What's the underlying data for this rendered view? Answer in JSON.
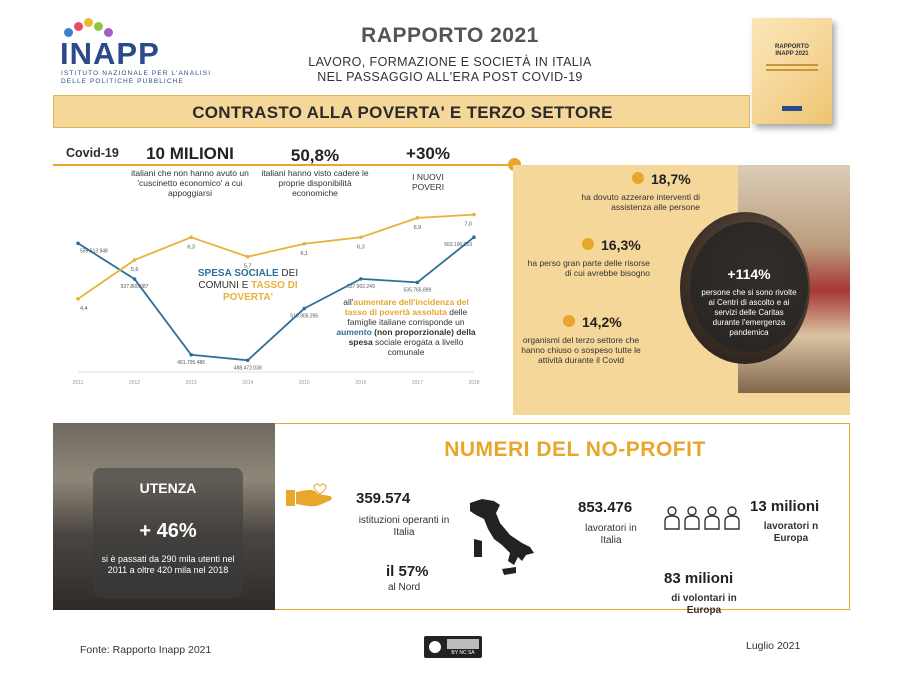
{
  "header": {
    "logo_word": "INAPP",
    "logo_line1": "ISTITUTO NAZIONALE PER L'ANALISI",
    "logo_line2": "DELLE POLITICHE PUBBLICHE",
    "title": "RAPPORTO 2021",
    "subtitle_line1": "LAVORO, FORMAZIONE E SOCIETÀ IN ITALIA",
    "subtitle_line2": "NEL PASSAGGIO ALL'ERA POST COVID-19",
    "book_title_line1": "RAPPORTO",
    "book_title_line2": "INAPP 2021"
  },
  "banner": {
    "title": "CONTRASTO ALLA POVERTA' E TERZO SETTORE"
  },
  "covid": {
    "label": "Covid-19",
    "items": [
      {
        "value": "10 MILIONI",
        "desc": "italiani che non hanno avuto un 'cuscinetto economico' a cui appoggiarsi"
      },
      {
        "value": "50,8%",
        "desc": "italiani hanno visto cadere le proprie disponibilità economiche"
      },
      {
        "value": "+30%",
        "desc": "I NUOVI POVERI"
      }
    ]
  },
  "chart": {
    "legend_part1": "SPESA SOCIALE",
    "legend_part2": " DEI COMUNI E ",
    "legend_part3": "TASSO DI POVERTA'",
    "note_part1": "all'",
    "note_part2": "aumentare dell'incidenza del tasso di povertà assoluta",
    "note_part3": " delle famiglie italiane corrisponde un ",
    "note_part4": "aumento",
    "note_part5": " (non proporzionale) della spesa",
    "note_part6": " sociale erogata a livello comunale"
  },
  "chart_data": {
    "type": "line",
    "x": [
      "2011",
      "2012",
      "2013",
      "2014",
      "2015",
      "2016",
      "2017",
      "2018"
    ],
    "series": [
      {
        "name": "SPESA SOCIALE DEI COMUNI",
        "color": "#2f6f97",
        "values": [
          559513948,
          537800087,
          491795486,
          488472038,
          519905295,
          537902249,
          535765899,
          563190053
        ],
        "labels": [
          "559.513.948",
          "537.800.087",
          "491.795.486",
          "488.472.038",
          "519.905.295",
          "537.902.249",
          "535.765.899",
          "563.190.053"
        ]
      },
      {
        "name": "TASSO DI POVERTA'",
        "color": "#e8b23a",
        "values": [
          4.4,
          5.6,
          6.3,
          5.7,
          6.1,
          6.3,
          6.9,
          7.0
        ],
        "labels": [
          "4,4",
          "5,6",
          "6,3",
          "5,7",
          "6,1",
          "6,3",
          "6,9",
          "7,0"
        ]
      }
    ]
  },
  "stats": [
    {
      "value": "18,7%",
      "desc": "ha dovuto azzerare interventi di assistenza alle persone"
    },
    {
      "value": "16,3%",
      "desc": "ha perso gran parte delle risorse di cui avrebbe bisogno"
    },
    {
      "value": "14,2%",
      "desc": "organismi del terzo settore che hanno chiuso o sospeso tutte le attività durante il Covid"
    }
  ],
  "caritas": {
    "value": "+114%",
    "desc": "persone che si sono rivolte ai Centri di ascolto e ai servizi delle Caritas durante l'emergenza pandemica"
  },
  "utenza": {
    "title": "UTENZA",
    "value": "+ 46%",
    "desc": "si è passati da 290 mila utenti nel 2011 a oltre 420 mila nel 2018"
  },
  "nonprofit": {
    "title": "NUMERI DEL NO-PROFIT",
    "istituzioni_value": "359.574",
    "istituzioni_desc": "istituzioni operanti in Italia",
    "nord_value": "il 57%",
    "nord_desc": "al Nord",
    "lavoratori_it_value": "853.476",
    "lavoratori_it_desc": "lavoratori in Italia",
    "lavoratori_eu_value": "13 milioni",
    "lavoratori_eu_desc": "lavoratori n Europa",
    "volontari_value": "83 milioni",
    "volontari_desc": "di volontari in Europa"
  },
  "footer": {
    "source": "Fonte: Rapporto Inapp 2021",
    "license": "BY NC SA",
    "date": "Luglio 2021"
  },
  "colors": {
    "accent": "#e8a62c",
    "panel": "#f6d79a",
    "blue": "#2f6f97",
    "logo": "#2a4a8a"
  },
  "icons": [
    "hand-heart-icon",
    "italy-map-icon",
    "workers-group-icon",
    "cc-license-icon"
  ]
}
